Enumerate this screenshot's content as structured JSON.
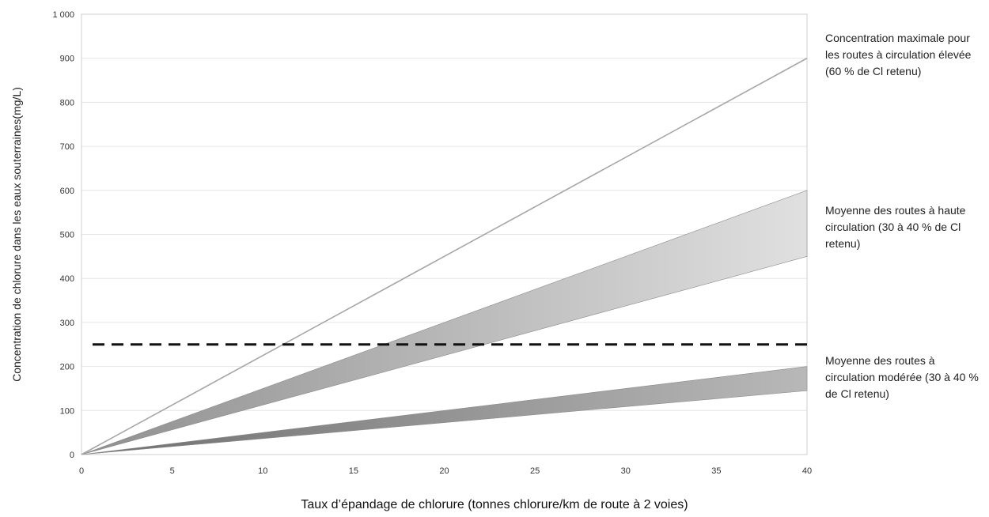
{
  "chart_data": {
    "type": "line",
    "title": "",
    "xlabel": "Taux d’épandage de chlorure (tonnes chlorure/km de route à 2 voies)",
    "ylabel": "Concentration de chlorure dans les eaux souterraines(mg/L)",
    "xlim": [
      0,
      40
    ],
    "ylim": [
      0,
      1000
    ],
    "x_ticks": [
      "0",
      "5",
      "10",
      "15",
      "20",
      "25",
      "30",
      "35",
      "40"
    ],
    "y_ticks": [
      "0",
      "100",
      "200",
      "300",
      "400",
      "500",
      "600",
      "700",
      "800",
      "900",
      "1 000"
    ],
    "grid": "horizontal",
    "series": [
      {
        "name": "Concentration maximale pour les routes à circulation élevée (60 % de Cl retenu)",
        "kind": "line",
        "color": "#a6a6a6",
        "x": [
          0,
          40
        ],
        "y": [
          0,
          900
        ]
      },
      {
        "name": "Moyenne des routes à haute circulation (30 à 40 % de Cl retenu)",
        "kind": "band",
        "color": "#b5b5b5",
        "x": [
          0,
          40
        ],
        "y_low": [
          0,
          450
        ],
        "y_high": [
          0,
          600
        ]
      },
      {
        "name": "Moyenne des routes à circulation modérée (30 à 40 % de Cl retenu)",
        "kind": "band",
        "color": "#9c9c9c",
        "x": [
          0,
          40
        ],
        "y_low": [
          0,
          145
        ],
        "y_high": [
          0,
          200
        ]
      }
    ],
    "reference_lines": [
      {
        "axis": "y",
        "value": 250,
        "style": "dashed",
        "color": "#111111"
      }
    ],
    "annotations": [
      "Concentration maximale pour les routes à circulation élevée (60 % de Cl retenu)",
      "Moyenne des routes à haute circulation (30 à 40 % de Cl retenu)",
      "Moyenne des routes à circulation modérée (30 à 40 % de Cl retenu)"
    ],
    "colors": {
      "grid": "#e6e6e6",
      "plot_border": "#cfcfcf",
      "tick_text": "#333333"
    }
  }
}
